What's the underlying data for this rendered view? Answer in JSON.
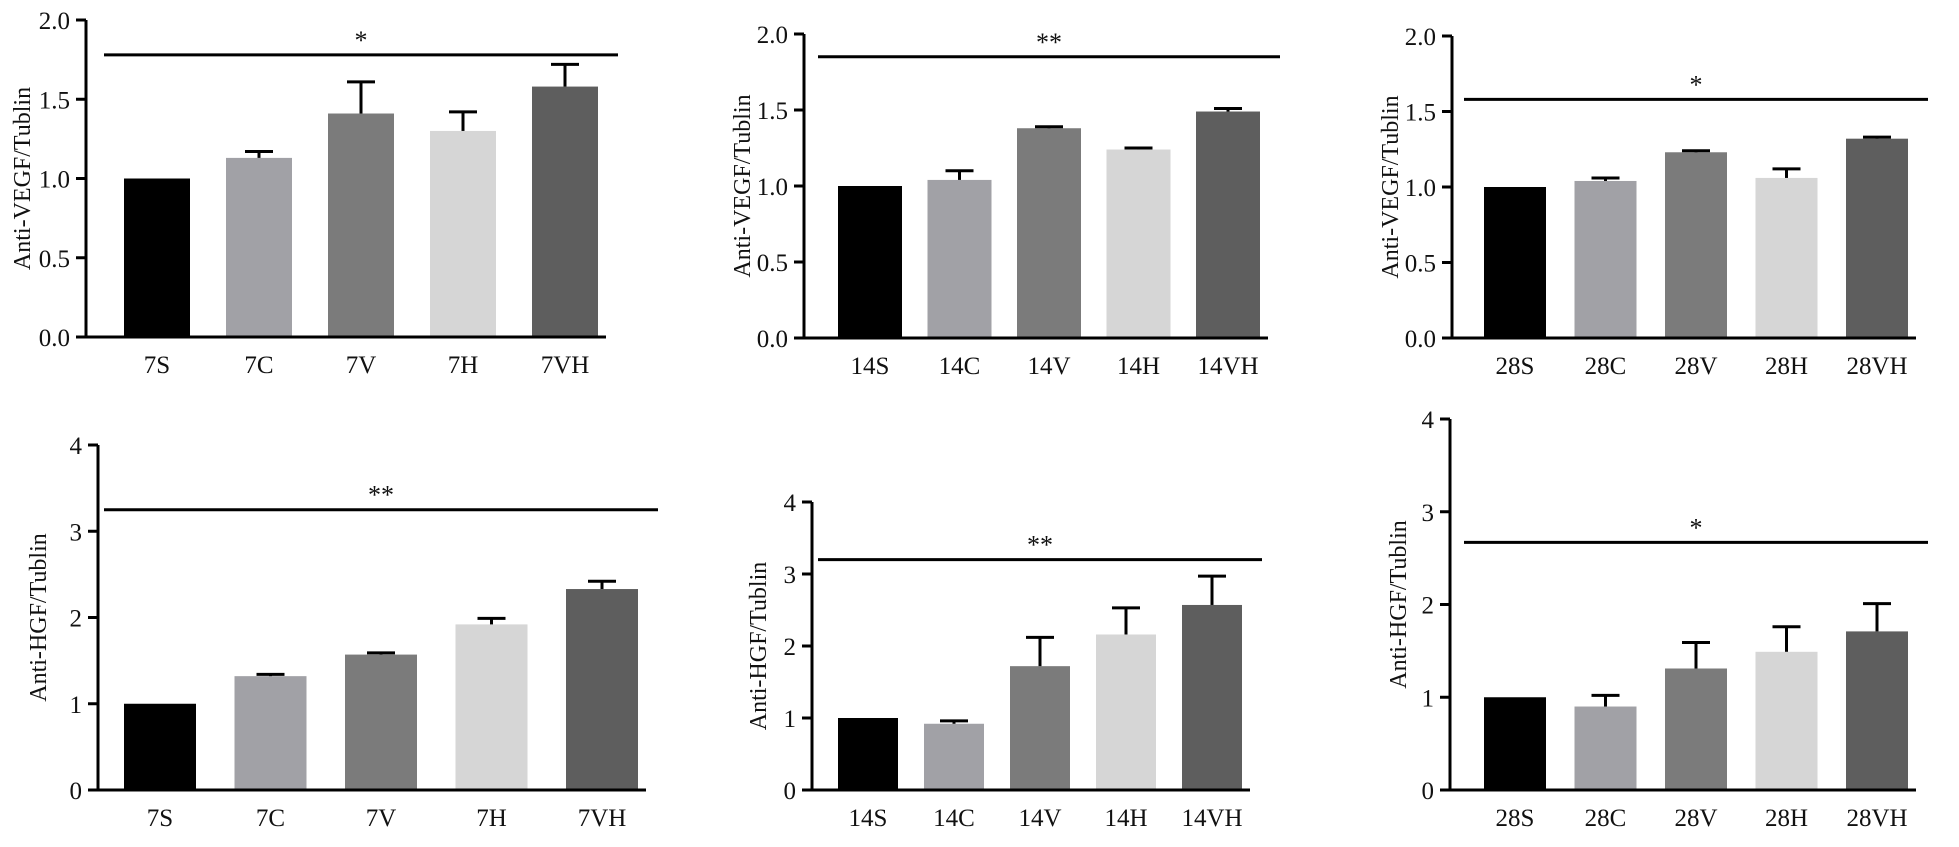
{
  "chart_data": [
    {
      "type": "bar",
      "title": "",
      "xlabel": "",
      "ylabel": "Anti-VEGF/Tublin",
      "categories": [
        "7S",
        "7C",
        "7V",
        "7H",
        "7VH"
      ],
      "values": [
        1.0,
        1.13,
        1.41,
        1.3,
        1.58
      ],
      "errors": [
        0,
        0.04,
        0.2,
        0.12,
        0.14
      ],
      "colors": [
        "#000000",
        "#a1a1a6",
        "#7b7b7b",
        "#d6d6d6",
        "#5e5e5e"
      ],
      "ylim": [
        0,
        2.0
      ],
      "yticks": [
        0.0,
        0.5,
        1.0,
        1.5,
        2.0
      ],
      "ytick_labels": [
        "0.0",
        "0.5",
        "1.0",
        "1.5",
        "2.0"
      ],
      "significance": "*",
      "significance_level": 1.78
    },
    {
      "type": "bar",
      "title": "",
      "xlabel": "",
      "ylabel": "Anti-VEGF/Tublin",
      "categories": [
        "14S",
        "14C",
        "14V",
        "14H",
        "14VH"
      ],
      "values": [
        1.0,
        1.04,
        1.38,
        1.24,
        1.49
      ],
      "errors": [
        0,
        0.06,
        0.01,
        0.01,
        0.02
      ],
      "colors": [
        "#000000",
        "#a1a1a6",
        "#7b7b7b",
        "#d6d6d6",
        "#5e5e5e"
      ],
      "ylim": [
        0,
        2.0
      ],
      "yticks": [
        0.0,
        0.5,
        1.0,
        1.5,
        2.0
      ],
      "ytick_labels": [
        "0.0",
        "0.5",
        "1.0",
        "1.5",
        "2.0"
      ],
      "significance": "**",
      "significance_level": 1.85
    },
    {
      "type": "bar",
      "title": "",
      "xlabel": "",
      "ylabel": "Anti-VEGF/Tublin",
      "categories": [
        "28S",
        "28C",
        "28V",
        "28H",
        "28VH"
      ],
      "values": [
        1.0,
        1.04,
        1.23,
        1.06,
        1.32
      ],
      "errors": [
        0,
        0.02,
        0.01,
        0.06,
        0.01
      ],
      "colors": [
        "#000000",
        "#a1a1a6",
        "#7b7b7b",
        "#d6d6d6",
        "#5e5e5e"
      ],
      "ylim": [
        0,
        2.0
      ],
      "yticks": [
        0.0,
        0.5,
        1.0,
        1.5,
        2.0
      ],
      "ytick_labels": [
        "0.0",
        "0.5",
        "1.0",
        "1.5",
        "2.0"
      ],
      "significance": "*",
      "significance_level": 1.58
    },
    {
      "type": "bar",
      "title": "",
      "xlabel": "",
      "ylabel": "Anti-HGF/Tublin",
      "categories": [
        "7S",
        "7C",
        "7V",
        "7H",
        "7VH"
      ],
      "values": [
        1.0,
        1.32,
        1.57,
        1.92,
        2.33
      ],
      "errors": [
        0,
        0.02,
        0.02,
        0.07,
        0.09
      ],
      "colors": [
        "#000000",
        "#a1a1a6",
        "#7b7b7b",
        "#d6d6d6",
        "#5e5e5e"
      ],
      "ylim": [
        0,
        4
      ],
      "yticks": [
        0,
        1,
        2,
        3,
        4
      ],
      "ytick_labels": [
        "0",
        "1",
        "2",
        "3",
        "4"
      ],
      "significance": "**",
      "significance_level": 3.25
    },
    {
      "type": "bar",
      "title": "",
      "xlabel": "",
      "ylabel": "Anti-HGF/Tublin",
      "categories": [
        "14S",
        "14C",
        "14V",
        "14H",
        "14VH"
      ],
      "values": [
        1.0,
        0.92,
        1.72,
        2.16,
        2.57
      ],
      "errors": [
        0,
        0.04,
        0.4,
        0.37,
        0.4
      ],
      "colors": [
        "#000000",
        "#a1a1a6",
        "#7b7b7b",
        "#d6d6d6",
        "#5e5e5e"
      ],
      "ylim": [
        0,
        4
      ],
      "yticks": [
        0,
        1,
        2,
        3,
        4
      ],
      "ytick_labels": [
        "0",
        "1",
        "2",
        "3",
        "4"
      ],
      "significance": "**",
      "significance_level": 3.2
    },
    {
      "type": "bar",
      "title": "",
      "xlabel": "",
      "ylabel": "Anti-HGF/Tublin",
      "categories": [
        "28S",
        "28C",
        "28V",
        "28H",
        "28VH"
      ],
      "values": [
        1.0,
        0.9,
        1.31,
        1.49,
        1.71
      ],
      "errors": [
        0,
        0.12,
        0.28,
        0.27,
        0.3
      ],
      "colors": [
        "#000000",
        "#a1a1a6",
        "#7b7b7b",
        "#d6d6d6",
        "#5e5e5e"
      ],
      "ylim": [
        0,
        4
      ],
      "yticks": [
        0,
        1,
        2,
        3,
        4
      ],
      "ytick_labels": [
        "0",
        "1",
        "2",
        "3",
        "4"
      ],
      "significance": "*",
      "significance_level": 2.67
    }
  ]
}
